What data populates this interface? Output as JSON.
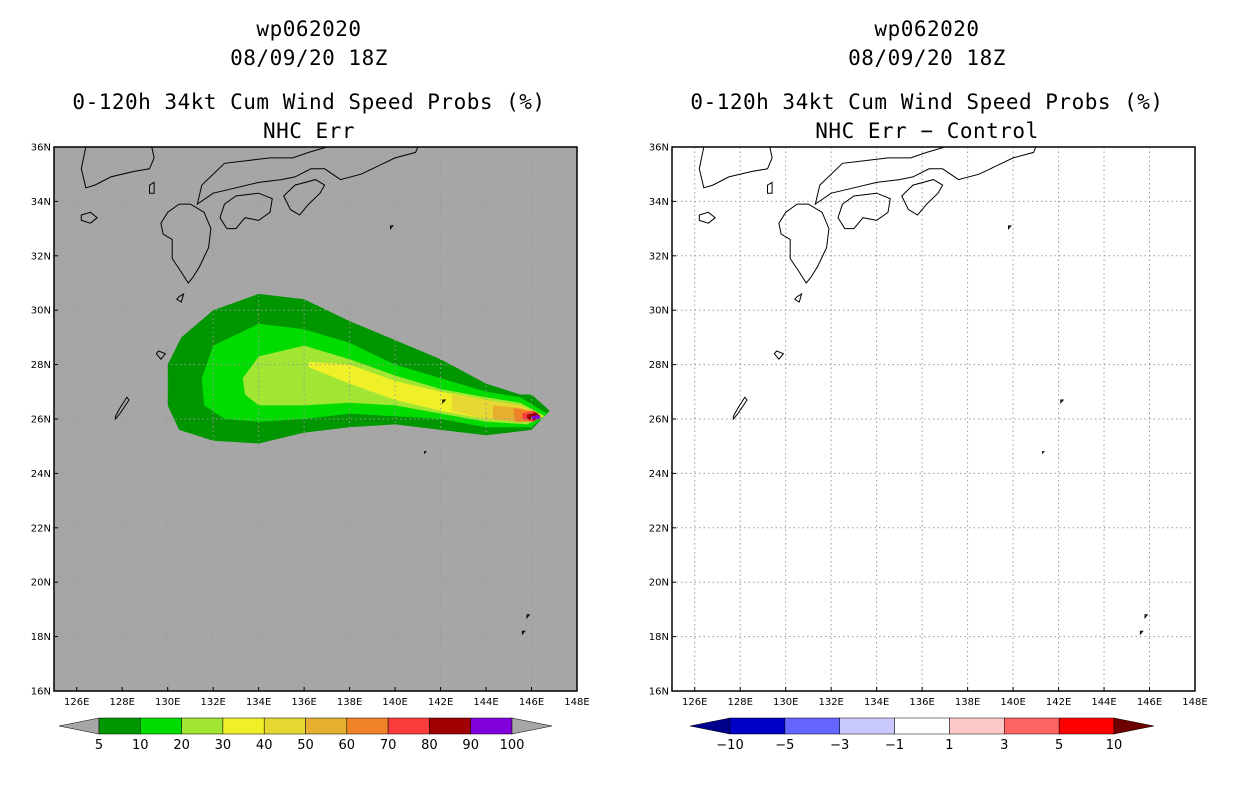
{
  "chart_data": [
    {
      "type": "heatmap",
      "title_lines": [
        "wp062020",
        "08/09/20 18Z",
        "0-120h 34kt Cum Wind Speed Probs (%)",
        "NHC Err"
      ],
      "x_ticks": [
        "126E",
        "128E",
        "130E",
        "132E",
        "134E",
        "136E",
        "138E",
        "140E",
        "142E",
        "144E",
        "146E",
        "148E"
      ],
      "y_ticks": [
        "16N",
        "18N",
        "20N",
        "22N",
        "24N",
        "26N",
        "28N",
        "30N",
        "32N",
        "34N",
        "36N"
      ],
      "xlim": [
        125,
        148
      ],
      "ylim": [
        16,
        36
      ],
      "background": "#a6a6a6",
      "colorbar": {
        "labels": [
          "5",
          "10",
          "20",
          "30",
          "40",
          "50",
          "60",
          "70",
          "80",
          "90",
          "100"
        ],
        "colors": [
          "#009600",
          "#00dc00",
          "#a0e632",
          "#f0f028",
          "#e6d732",
          "#e6af2d",
          "#f08228",
          "#fa3c3c",
          "#a00000",
          "#8200dc"
        ],
        "end_color": "#a6a6a6"
      },
      "contours": [
        {
          "level": 5,
          "color": "#009600",
          "points": [
            [
              130.0,
              28.0
            ],
            [
              130.6,
              29.0
            ],
            [
              132.0,
              30.0
            ],
            [
              134.0,
              30.6
            ],
            [
              136.0,
              30.4
            ],
            [
              138.0,
              29.6
            ],
            [
              140.0,
              28.9
            ],
            [
              142.0,
              28.2
            ],
            [
              144.0,
              27.3
            ],
            [
              145.5,
              26.9
            ],
            [
              146.0,
              26.9
            ],
            [
              146.8,
              26.3
            ],
            [
              146.0,
              25.6
            ],
            [
              144.0,
              25.4
            ],
            [
              142.0,
              25.6
            ],
            [
              140.0,
              25.8
            ],
            [
              138.0,
              25.7
            ],
            [
              136.0,
              25.5
            ],
            [
              134.0,
              25.1
            ],
            [
              132.0,
              25.2
            ],
            [
              130.5,
              25.6
            ],
            [
              130.0,
              26.5
            ]
          ]
        },
        {
          "level": 10,
          "color": "#00dc00",
          "points": [
            [
              131.5,
              27.5
            ],
            [
              132.0,
              28.7
            ],
            [
              134.0,
              29.5
            ],
            [
              136.0,
              29.3
            ],
            [
              138.0,
              28.8
            ],
            [
              140.0,
              28.0
            ],
            [
              142.0,
              27.5
            ],
            [
              144.0,
              27.0
            ],
            [
              145.5,
              26.8
            ],
            [
              146.7,
              26.2
            ],
            [
              146.0,
              25.7
            ],
            [
              144.0,
              25.7
            ],
            [
              142.0,
              26.0
            ],
            [
              140.0,
              26.1
            ],
            [
              138.0,
              26.2
            ],
            [
              136.0,
              26.0
            ],
            [
              134.0,
              25.9
            ],
            [
              132.5,
              26.0
            ],
            [
              131.6,
              26.5
            ]
          ]
        },
        {
          "level": 20,
          "color": "#a0e632",
          "points": [
            [
              133.3,
              27.5
            ],
            [
              134.0,
              28.3
            ],
            [
              136.0,
              28.7
            ],
            [
              138.0,
              28.2
            ],
            [
              140.0,
              27.6
            ],
            [
              142.0,
              27.1
            ],
            [
              144.0,
              26.8
            ],
            [
              145.5,
              26.6
            ],
            [
              146.6,
              26.1
            ],
            [
              145.8,
              25.8
            ],
            [
              144.0,
              25.9
            ],
            [
              142.0,
              26.2
            ],
            [
              140.0,
              26.5
            ],
            [
              138.0,
              26.6
            ],
            [
              136.0,
              26.5
            ],
            [
              134.0,
              26.5
            ],
            [
              133.4,
              26.9
            ]
          ]
        },
        {
          "level": 30,
          "color": "#f0f028",
          "points": [
            [
              136.2,
              28.1
            ],
            [
              138.0,
              28.0
            ],
            [
              140.0,
              27.4
            ],
            [
              142.0,
              27.0
            ],
            [
              144.0,
              26.7
            ],
            [
              145.5,
              26.5
            ],
            [
              146.5,
              26.1
            ],
            [
              145.8,
              25.9
            ],
            [
              144.0,
              26.0
            ],
            [
              142.0,
              26.3
            ],
            [
              140.0,
              26.7
            ],
            [
              138.0,
              27.3
            ],
            [
              136.2,
              27.9
            ]
          ]
        },
        {
          "level": 40,
          "color": "#e6d732",
          "points": [
            [
              142.5,
              26.9
            ],
            [
              144.0,
              26.7
            ],
            [
              145.5,
              26.5
            ],
            [
              146.4,
              26.1
            ],
            [
              145.6,
              25.9
            ],
            [
              144.0,
              26.0
            ],
            [
              142.5,
              26.3
            ]
          ]
        },
        {
          "level": 50,
          "color": "#e6af2d",
          "points": [
            [
              144.3,
              26.5
            ],
            [
              145.5,
              26.4
            ],
            [
              146.3,
              26.1
            ],
            [
              145.5,
              25.9
            ],
            [
              144.3,
              26.0
            ]
          ]
        },
        {
          "level": 60,
          "color": "#f08228",
          "points": [
            [
              145.2,
              26.4
            ],
            [
              146.0,
              26.3
            ],
            [
              146.3,
              26.1
            ],
            [
              146.0,
              25.9
            ],
            [
              145.3,
              25.9
            ]
          ]
        },
        {
          "level": 70,
          "color": "#fa3c3c",
          "points": [
            [
              145.6,
              26.2
            ],
            [
              146.1,
              26.3
            ],
            [
              146.4,
              26.1
            ],
            [
              146.1,
              25.9
            ],
            [
              145.6,
              26.0
            ]
          ]
        },
        {
          "level": 80,
          "color": "#a00000",
          "points": [
            [
              145.8,
              26.15
            ],
            [
              146.2,
              26.25
            ],
            [
              146.4,
              26.1
            ],
            [
              146.2,
              25.95
            ],
            [
              145.8,
              26.0
            ]
          ]
        },
        {
          "level": 90,
          "color": "#8200dc",
          "points": [
            [
              146.0,
              26.1
            ],
            [
              146.3,
              26.15
            ],
            [
              146.4,
              26.05
            ],
            [
              146.3,
              25.98
            ],
            [
              146.0,
              26.02
            ]
          ]
        }
      ]
    },
    {
      "type": "heatmap",
      "title_lines": [
        "wp062020",
        "08/09/20 18Z",
        "0-120h 34kt Cum Wind Speed Probs (%)",
        "NHC Err − Control"
      ],
      "x_ticks": [
        "126E",
        "128E",
        "130E",
        "132E",
        "134E",
        "136E",
        "138E",
        "140E",
        "142E",
        "144E",
        "146E",
        "148E"
      ],
      "y_ticks": [
        "16N",
        "18N",
        "20N",
        "22N",
        "24N",
        "26N",
        "28N",
        "30N",
        "32N",
        "34N",
        "36N"
      ],
      "xlim": [
        125,
        148
      ],
      "ylim": [
        16,
        36
      ],
      "background": "#ffffff",
      "colorbar": {
        "labels": [
          "−10",
          "−5",
          "−3",
          "−1",
          "1",
          "3",
          "5",
          "10"
        ],
        "colors": [
          "#0000c8",
          "#6464ff",
          "#c8c8ff",
          "#ffffff",
          "#ffc8c8",
          "#ff6464",
          "#ff0000"
        ],
        "start_color": "#00008c",
        "end_color": "#6e0000"
      },
      "contours": []
    }
  ]
}
